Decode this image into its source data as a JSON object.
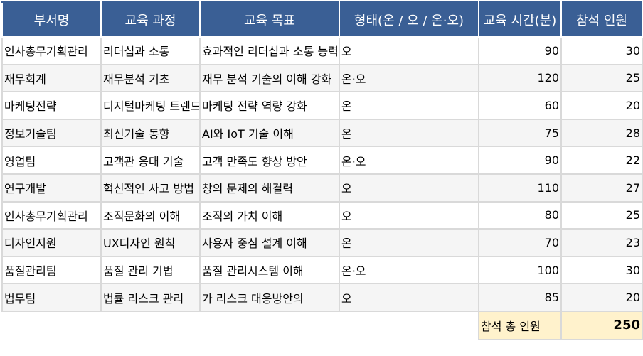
{
  "headers": [
    "부서명",
    "교육 과정",
    "교육 목표",
    "형태(온 / 오 / 온·오)",
    "교육 시간(분)",
    "참석 인원"
  ],
  "rows": [
    [
      "인사총무기획관리",
      "리더십과 소통",
      "효과적인 리더십과 소통 능력",
      "오",
      "90",
      "30"
    ],
    [
      "재무회계",
      "재무분석 기초",
      "재무 분석 기술의 이해 강화",
      "온·오",
      "120",
      "25"
    ],
    [
      "마케팅전략",
      "디지털마케팅 트렌드",
      "마케팅 전략 역량 강화",
      "온",
      "60",
      "20"
    ],
    [
      "정보기술팀",
      "최신기술 동향",
      "AI와 IoT 기술 이해",
      "온",
      "75",
      "28"
    ],
    [
      "영업팀",
      "고객관 응대 기술",
      "고객 만족도 향상 방안",
      "온·오",
      "90",
      "22"
    ],
    [
      "연구개발",
      "혁신적인 사고 방법",
      "창의 문제의 해결력",
      "오",
      "110",
      "27"
    ],
    [
      "인사총무기획관리",
      "조직문화의 이해",
      "조직의 가치 이해",
      "오",
      "80",
      "25"
    ],
    [
      "디자인지원",
      "UX디자인 원칙",
      "사용자 중심 설계 이해",
      "온",
      "70",
      "23"
    ],
    [
      "품질관리팀",
      "품질 관리 기법",
      "품질 관리시스템 이해",
      "온·오",
      "100",
      "30"
    ],
    [
      "법무팀",
      "법률 리스크 관리",
      "가 리스크 대응방안의",
      "오",
      "85",
      "20"
    ]
  ],
  "total": {
    "label": "참석 총 인원",
    "value": "250"
  }
}
